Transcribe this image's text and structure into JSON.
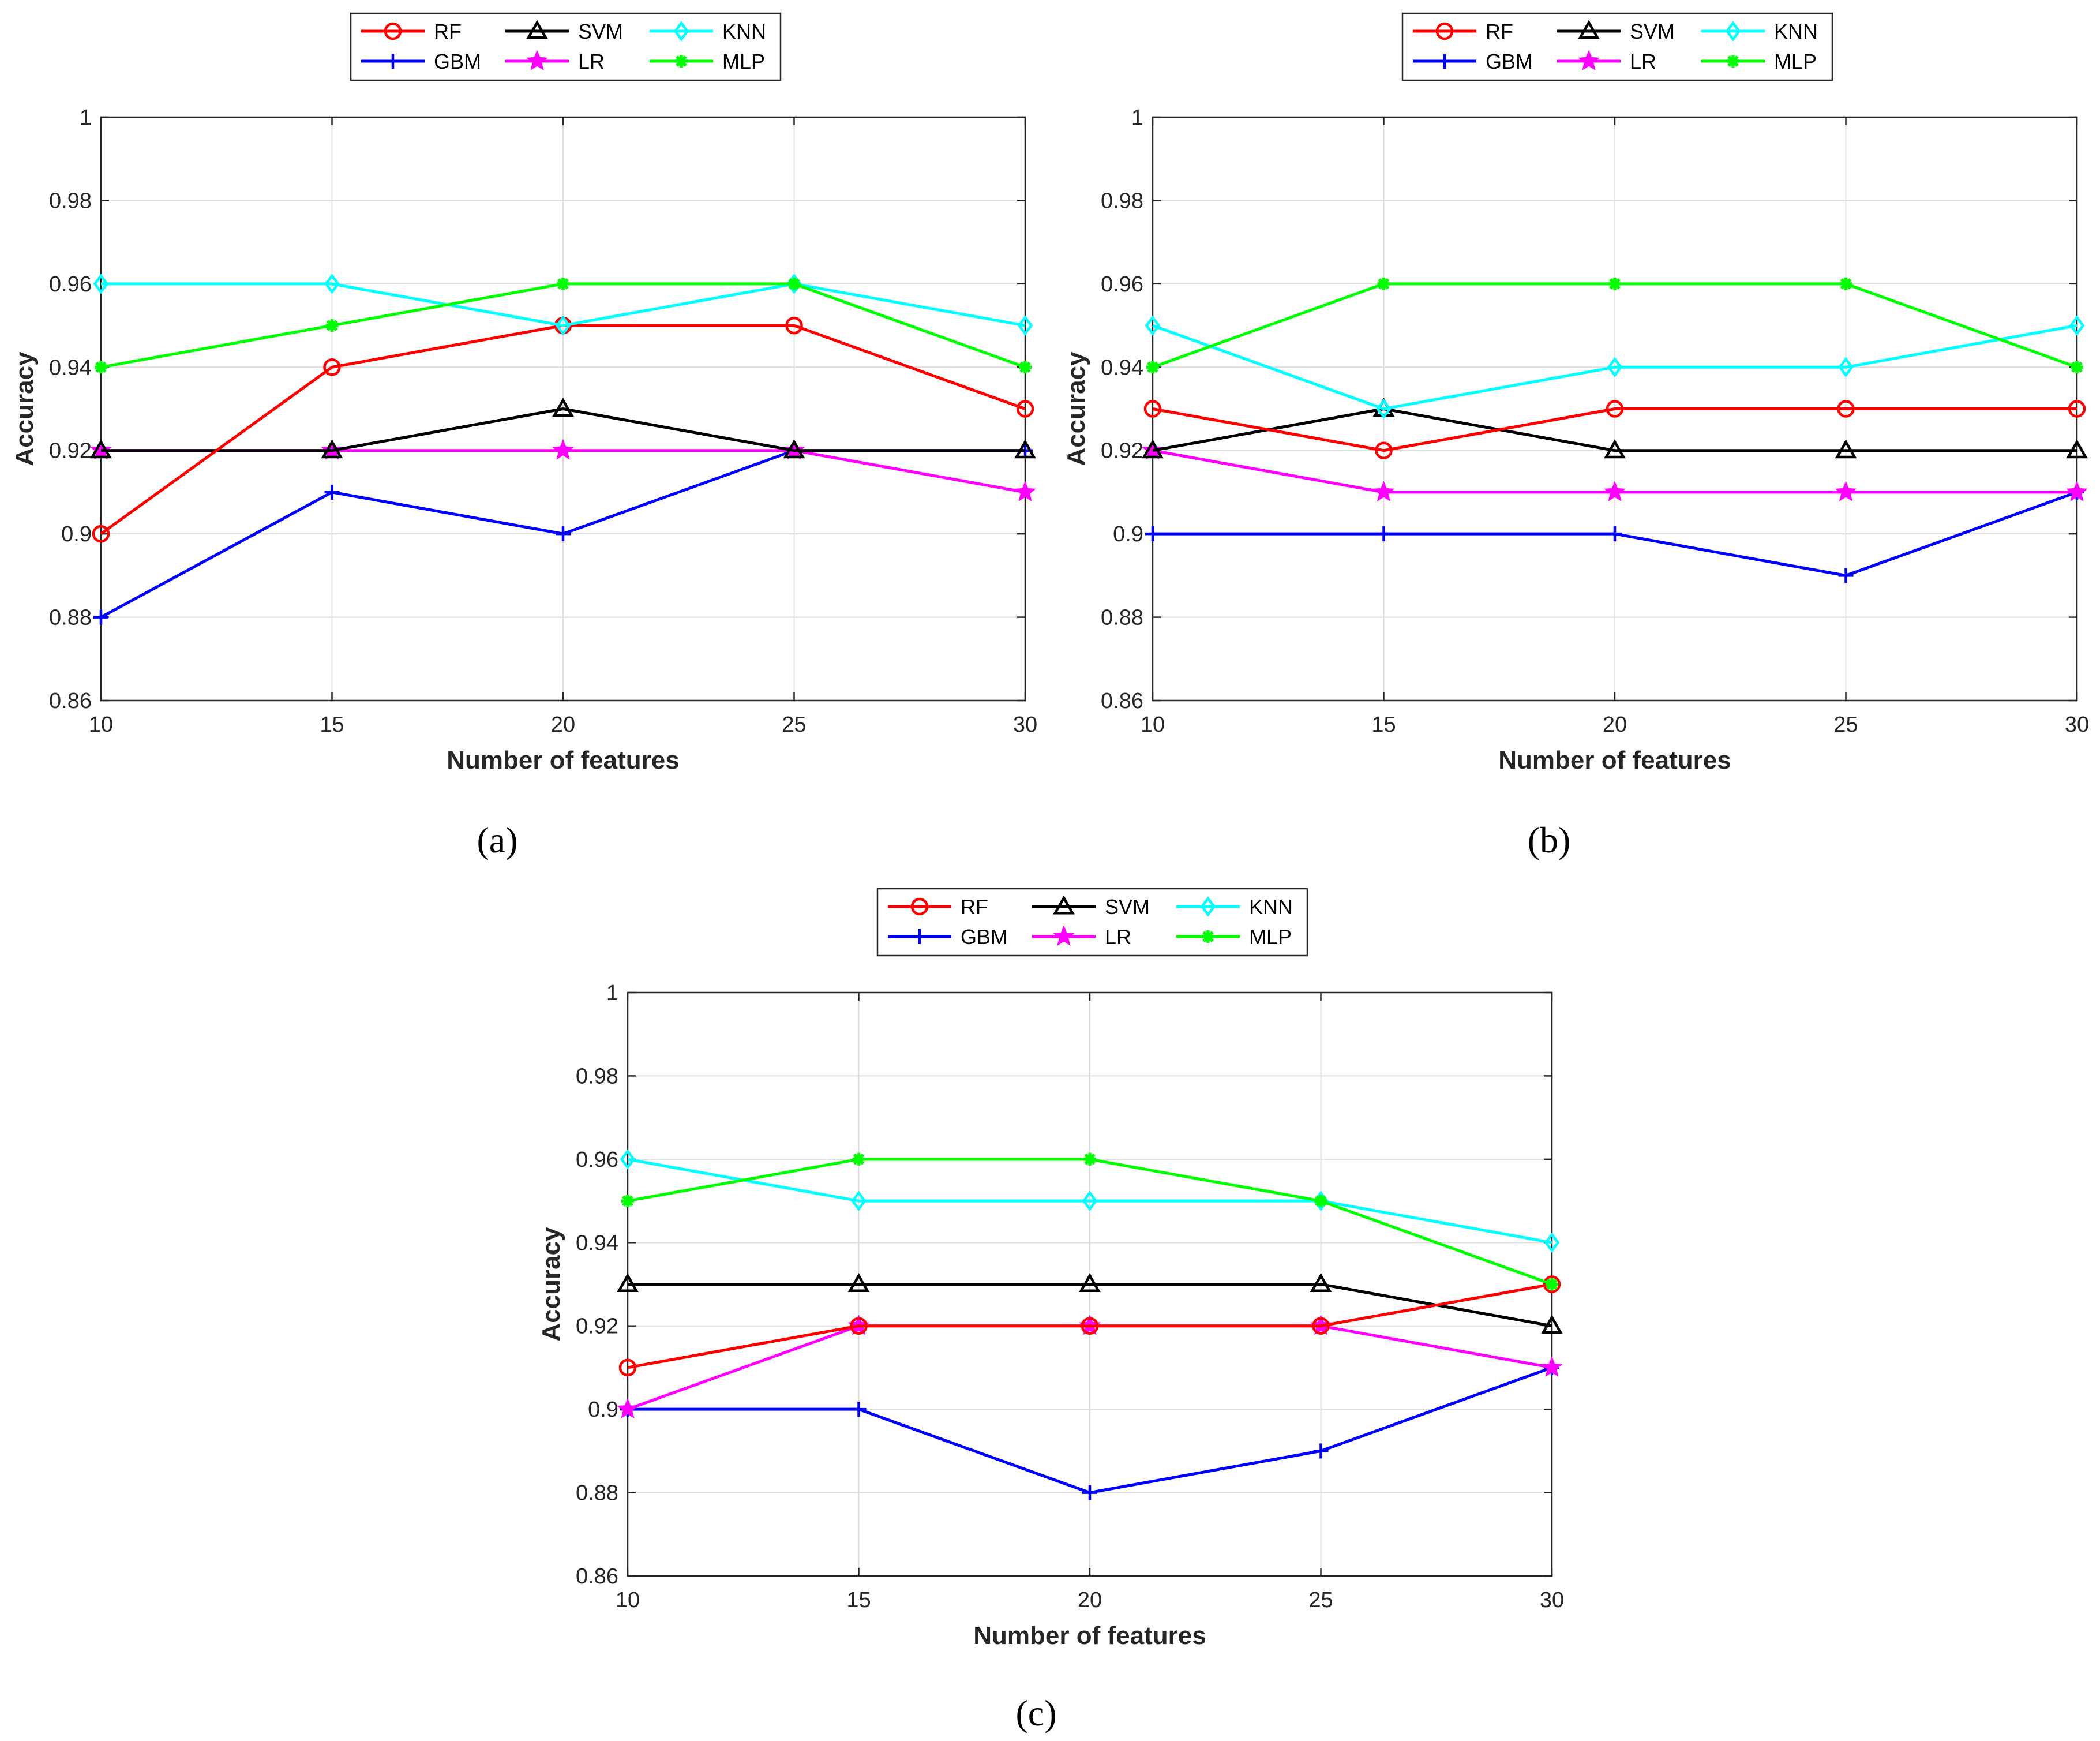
{
  "colors": {
    "RF": "#ff0000",
    "SVM": "#000000",
    "KNN": "#00ffff",
    "GBM": "#0000ff",
    "LR": "#ff00ff",
    "MLP": "#00ff00"
  },
  "chart_data": [
    {
      "type": "line",
      "panel": "a",
      "caption": "(a)",
      "xlabel": "Number of features",
      "ylabel": "Accuracy",
      "x": [
        10,
        15,
        20,
        25,
        30
      ],
      "xticks": [
        "10",
        "15",
        "20",
        "25",
        "30"
      ],
      "yticks": [
        "0.86",
        "0.88",
        "0.9",
        "0.92",
        "0.94",
        "0.96",
        "0.98",
        "1"
      ],
      "ylim": [
        0.86,
        1.0
      ],
      "grid": true,
      "legend_position": "top-center",
      "series": [
        {
          "name": "RF",
          "values": [
            0.9,
            0.94,
            0.95,
            0.95,
            0.93
          ]
        },
        {
          "name": "SVM",
          "values": [
            0.92,
            0.92,
            0.93,
            0.92,
            0.92
          ]
        },
        {
          "name": "KNN",
          "values": [
            0.96,
            0.96,
            0.95,
            0.96,
            0.95
          ]
        },
        {
          "name": "GBM",
          "values": [
            0.88,
            0.91,
            0.9,
            0.92,
            0.92
          ]
        },
        {
          "name": "LR",
          "values": [
            0.92,
            0.92,
            0.92,
            0.92,
            0.91
          ]
        },
        {
          "name": "MLP",
          "values": [
            0.94,
            0.95,
            0.96,
            0.96,
            0.94
          ]
        }
      ]
    },
    {
      "type": "line",
      "panel": "b",
      "caption": "(b)",
      "xlabel": "Number of features",
      "ylabel": "Accuracy",
      "x": [
        10,
        15,
        20,
        25,
        30
      ],
      "xticks": [
        "10",
        "15",
        "20",
        "25",
        "30"
      ],
      "yticks": [
        "0.86",
        "0.88",
        "0.9",
        "0.92",
        "0.94",
        "0.96",
        "0.98",
        "1"
      ],
      "ylim": [
        0.86,
        1.0
      ],
      "grid": true,
      "legend_position": "top-center",
      "series": [
        {
          "name": "RF",
          "values": [
            0.93,
            0.92,
            0.93,
            0.93,
            0.93
          ]
        },
        {
          "name": "SVM",
          "values": [
            0.92,
            0.93,
            0.92,
            0.92,
            0.92
          ]
        },
        {
          "name": "KNN",
          "values": [
            0.95,
            0.93,
            0.94,
            0.94,
            0.95
          ]
        },
        {
          "name": "GBM",
          "values": [
            0.9,
            0.9,
            0.9,
            0.89,
            0.91
          ]
        },
        {
          "name": "LR",
          "values": [
            0.92,
            0.91,
            0.91,
            0.91,
            0.91
          ]
        },
        {
          "name": "MLP",
          "values": [
            0.94,
            0.96,
            0.96,
            0.96,
            0.94
          ]
        }
      ]
    },
    {
      "type": "line",
      "panel": "c",
      "caption": "(c)",
      "xlabel": "Number of features",
      "ylabel": "Accuracy",
      "x": [
        10,
        15,
        20,
        25,
        30
      ],
      "xticks": [
        "10",
        "15",
        "20",
        "25",
        "30"
      ],
      "yticks": [
        "0.86",
        "0.88",
        "0.9",
        "0.92",
        "0.94",
        "0.96",
        "0.98",
        "1"
      ],
      "ylim": [
        0.86,
        1.0
      ],
      "grid": true,
      "legend_position": "top-center",
      "series": [
        {
          "name": "RF",
          "values": [
            0.91,
            0.92,
            0.92,
            0.92,
            0.93
          ]
        },
        {
          "name": "SVM",
          "values": [
            0.93,
            0.93,
            0.93,
            0.93,
            0.92
          ]
        },
        {
          "name": "KNN",
          "values": [
            0.96,
            0.95,
            0.95,
            0.95,
            0.94
          ]
        },
        {
          "name": "GBM",
          "values": [
            0.9,
            0.9,
            0.88,
            0.89,
            0.91
          ]
        },
        {
          "name": "LR",
          "values": [
            0.9,
            0.92,
            0.92,
            0.92,
            0.91
          ]
        },
        {
          "name": "MLP",
          "values": [
            0.95,
            0.96,
            0.96,
            0.95,
            0.93
          ]
        }
      ]
    }
  ]
}
